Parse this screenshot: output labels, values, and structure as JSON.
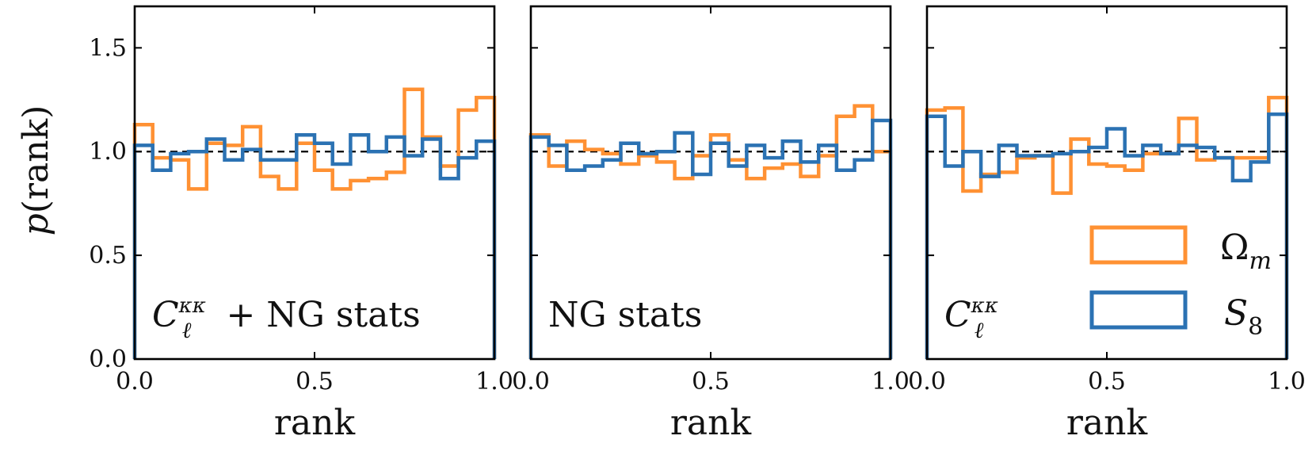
{
  "colors": {
    "omega_m": "#ff9133",
    "s8": "#2b72b3",
    "reference": "#000000",
    "frame": "#000000"
  },
  "chart_data": [
    {
      "type": "histogram",
      "annotation": "C_ℓ^{κκ} + NG stats",
      "annotation_main": "C",
      "annotation_sub": "ℓ",
      "annotation_sup": "κκ",
      "annotation_rest": " + NG stats",
      "xlabel": "rank",
      "ylabel": "p(rank)",
      "xlim": [
        0,
        1
      ],
      "ylim": [
        0,
        1.7
      ],
      "xticks": [
        "0.0",
        "0.5",
        "1.0"
      ],
      "yticks": [
        "0.0",
        "0.5",
        "1.0",
        "1.5"
      ],
      "reference_line": 1.0,
      "series": [
        {
          "name": "Ω_m",
          "values": [
            1.13,
            0.97,
            0.96,
            0.82,
            1.04,
            1.03,
            1.12,
            0.88,
            0.82,
            1.04,
            0.91,
            0.82,
            0.86,
            0.87,
            0.9,
            1.3,
            1.07,
            0.93,
            1.2,
            1.26
          ]
        },
        {
          "name": "S_8",
          "values": [
            1.03,
            0.91,
            0.99,
            1.0,
            1.06,
            0.96,
            1.01,
            0.96,
            0.96,
            1.08,
            1.04,
            0.94,
            1.08,
            1.0,
            1.07,
            0.98,
            1.06,
            0.87,
            0.97,
            1.05
          ]
        }
      ]
    },
    {
      "type": "histogram",
      "annotation": "NG stats",
      "annotation_main": "",
      "annotation_sub": "",
      "annotation_sup": "",
      "annotation_rest": "NG stats",
      "xlabel": "rank",
      "xlim": [
        0,
        1
      ],
      "ylim": [
        0,
        1.7
      ],
      "xticks": [
        "0.0",
        "0.5",
        "1.0"
      ],
      "reference_line": 1.0,
      "series": [
        {
          "name": "Ω_m",
          "values": [
            1.08,
            0.93,
            1.05,
            1.01,
            0.99,
            0.94,
            0.98,
            0.95,
            0.87,
            0.98,
            1.08,
            0.96,
            0.87,
            0.92,
            0.94,
            0.88,
            0.98,
            1.17,
            1.22,
            1.0
          ]
        },
        {
          "name": "S_8",
          "values": [
            1.07,
            1.03,
            0.91,
            0.93,
            0.96,
            1.04,
            0.99,
            1.0,
            1.09,
            0.89,
            1.04,
            0.93,
            1.03,
            0.97,
            1.05,
            0.95,
            1.03,
            0.91,
            0.96,
            1.15
          ]
        }
      ]
    },
    {
      "type": "histogram",
      "annotation": "C_ℓ^{κκ}",
      "annotation_main": "C",
      "annotation_sub": "ℓ",
      "annotation_sup": "κκ",
      "annotation_rest": "",
      "xlabel": "rank",
      "xlim": [
        0,
        1
      ],
      "ylim": [
        0,
        1.7
      ],
      "xticks": [
        "0.0",
        "0.5",
        "1.0"
      ],
      "reference_line": 1.0,
      "series": [
        {
          "name": "Ω_m",
          "values": [
            1.2,
            1.21,
            0.81,
            0.89,
            0.9,
            0.97,
            0.98,
            0.8,
            1.06,
            0.94,
            0.93,
            0.91,
            0.99,
            0.99,
            1.16,
            0.96,
            0.97,
            0.97,
            0.97,
            1.26
          ]
        },
        {
          "name": "S_8",
          "values": [
            1.17,
            0.93,
            1.0,
            0.88,
            1.03,
            0.98,
            0.98,
            0.99,
            1.0,
            1.02,
            1.11,
            0.98,
            1.03,
            0.99,
            1.03,
            1.02,
            0.97,
            0.86,
            0.95,
            1.18
          ]
        }
      ]
    }
  ],
  "legend": {
    "omega_label": "Ω",
    "omega_sub": "m",
    "s8_label": "S",
    "s8_sub": "8"
  }
}
